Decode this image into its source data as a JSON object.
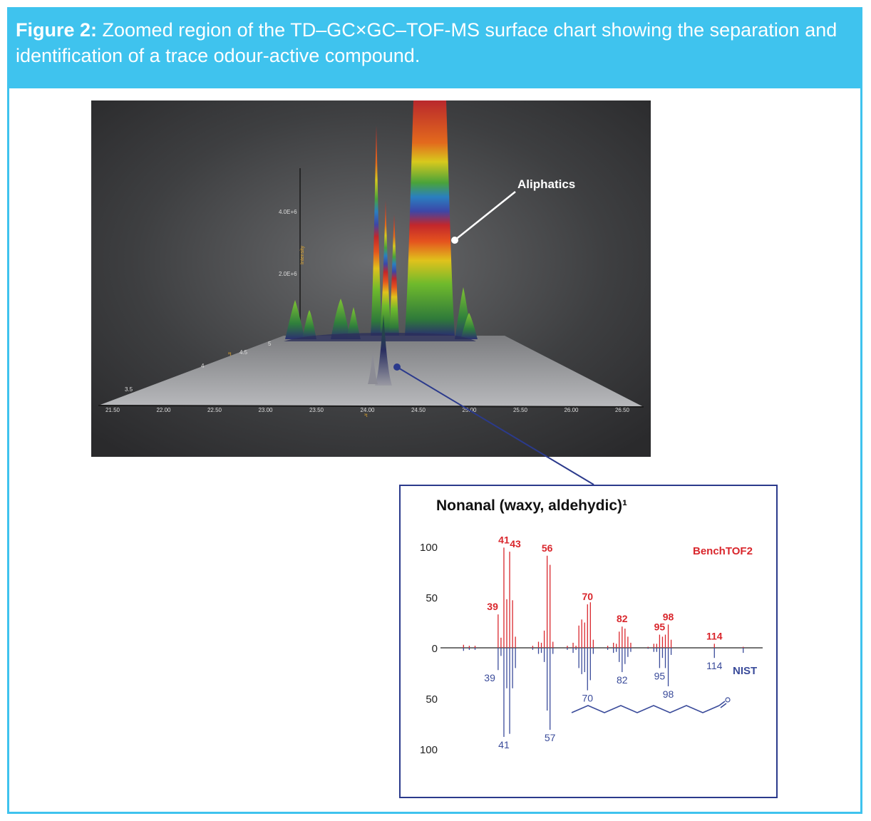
{
  "figure": {
    "label": "Figure 2:",
    "caption": "Zoomed region of the TD–GC×GC–TOF-MS surface chart showing the separation and identification of a trace odour-active compound."
  },
  "surface_chart": {
    "callout": "Aliphatics",
    "z_ticks": [
      "4.0E+6",
      "2.0E+6"
    ],
    "z_label": "Intensity",
    "y_ticks": [
      "3.5",
      "4",
      "4.5",
      "5"
    ],
    "y_label": "²t",
    "x_label": "¹t",
    "x_ticks": [
      "21.50",
      "22.00",
      "22.50",
      "23.00",
      "23.50",
      "24.00",
      "24.50",
      "25.00",
      "25.50",
      "26.00",
      "26.50"
    ]
  },
  "spectrum": {
    "title": "Nonanal (waxy, aldehydic)¹",
    "legend_top": "BenchTOF2",
    "legend_bottom": "NIST",
    "y_ticks": [
      "100",
      "50",
      "0",
      "50",
      "100"
    ],
    "colors": {
      "top": "#d9262c",
      "bottom": "#3a4b9a",
      "frame": "#2b3a8c"
    }
  },
  "chart_data": {
    "type": "bar",
    "title": "Nonanal (waxy, aldehydic)¹",
    "xlabel": "",
    "ylabel": "",
    "ylim": [
      -100,
      100
    ],
    "series": [
      {
        "name": "BenchTOF2",
        "x": [
          27,
          29,
          31,
          39,
          40,
          41,
          42,
          43,
          44,
          45,
          51,
          53,
          54,
          55,
          56,
          57,
          58,
          63,
          65,
          66,
          67,
          68,
          69,
          70,
          71,
          72,
          77,
          79,
          80,
          81,
          82,
          83,
          84,
          85,
          91,
          93,
          94,
          95,
          96,
          97,
          98,
          99,
          114,
          124
        ],
        "values": [
          3,
          2,
          2,
          33,
          10,
          99,
          48,
          95,
          47,
          11,
          2,
          6,
          5,
          17,
          91,
          82,
          6,
          2,
          5,
          2,
          22,
          28,
          25,
          43,
          45,
          8,
          2,
          5,
          4,
          16,
          21,
          19,
          11,
          5,
          1,
          4,
          4,
          13,
          11,
          13,
          23,
          8,
          4,
          1
        ]
      },
      {
        "name": "NIST",
        "x": [
          27,
          29,
          31,
          39,
          40,
          41,
          42,
          43,
          44,
          45,
          51,
          53,
          54,
          55,
          56,
          57,
          58,
          63,
          65,
          66,
          67,
          68,
          69,
          70,
          71,
          72,
          77,
          79,
          80,
          81,
          82,
          83,
          84,
          85,
          91,
          93,
          94,
          95,
          96,
          97,
          98,
          99,
          114,
          124
        ],
        "values": [
          -3,
          -2,
          -2,
          -22,
          -8,
          -88,
          -40,
          -85,
          -40,
          -20,
          -2,
          -6,
          -5,
          -14,
          -62,
          -81,
          -6,
          -2,
          -5,
          -2,
          -20,
          -26,
          -24,
          -42,
          -32,
          -6,
          -2,
          -5,
          -4,
          -14,
          -24,
          -16,
          -9,
          -4,
          -1,
          -4,
          -4,
          -20,
          -10,
          -20,
          -38,
          -7,
          -10,
          -5
        ]
      }
    ],
    "annotations_top": [
      {
        "x": 39,
        "label": "39"
      },
      {
        "x": 41,
        "label": "41"
      },
      {
        "x": 43,
        "label": "43"
      },
      {
        "x": 56,
        "label": "56"
      },
      {
        "x": 70,
        "label": "70"
      },
      {
        "x": 82,
        "label": "82"
      },
      {
        "x": 95,
        "label": "95"
      },
      {
        "x": 98,
        "label": "98"
      },
      {
        "x": 114,
        "label": "114"
      }
    ],
    "annotations_bottom": [
      {
        "x": 39,
        "label": "39"
      },
      {
        "x": 41,
        "label": "41"
      },
      {
        "x": 57,
        "label": "57"
      },
      {
        "x": 70,
        "label": "70"
      },
      {
        "x": 82,
        "label": "82"
      },
      {
        "x": 95,
        "label": "95"
      },
      {
        "x": 98,
        "label": "98"
      },
      {
        "x": 114,
        "label": "114"
      }
    ]
  }
}
